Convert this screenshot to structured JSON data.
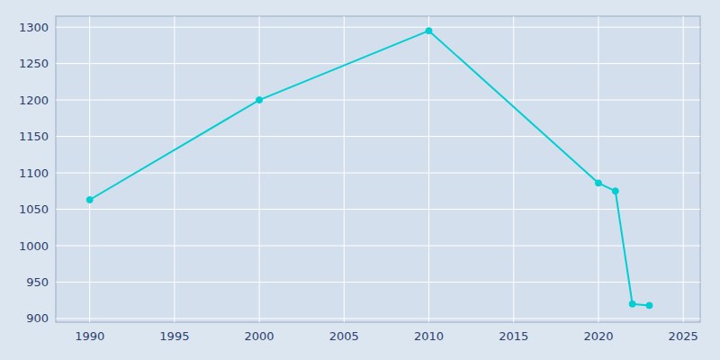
{
  "chart_data": {
    "type": "line",
    "x": [
      1990,
      2000,
      2010,
      2020,
      2021,
      2022,
      2023
    ],
    "values": [
      1063,
      1200,
      1295,
      1086,
      1075,
      920,
      918
    ],
    "color": "#00CED1",
    "marker": "circle",
    "xlim": [
      1988,
      2026
    ],
    "ylim": [
      895,
      1315
    ],
    "xticks": [
      1990,
      1995,
      2000,
      2005,
      2010,
      2015,
      2020,
      2025
    ],
    "yticks": [
      900,
      950,
      1000,
      1050,
      1100,
      1150,
      1200,
      1250,
      1300
    ],
    "grid": true
  }
}
